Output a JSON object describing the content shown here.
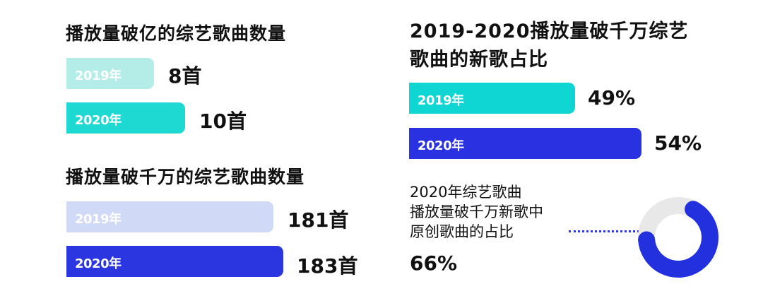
{
  "chart_data": [
    {
      "type": "bar",
      "title": "播放量破亿的综艺歌曲数量",
      "categories": [
        "2019年",
        "2020年"
      ],
      "values": [
        8,
        10
      ],
      "value_labels": [
        "8首",
        "10首"
      ],
      "colors": [
        "#b4ece8",
        "#1ed8d2"
      ]
    },
    {
      "type": "bar",
      "title": "播放量破千万的综艺歌曲数量",
      "categories": [
        "2019年",
        "2020年"
      ],
      "values": [
        181,
        183
      ],
      "value_labels": [
        "181首",
        "183首"
      ],
      "colors": [
        "#d0d9f6",
        "#2b35e0"
      ]
    },
    {
      "type": "bar",
      "title_lines": [
        "2019-2020播放量破千万综艺",
        "歌曲的新歌占比"
      ],
      "categories": [
        "2019年",
        "2020年"
      ],
      "values": [
        49,
        54
      ],
      "value_labels": [
        "49%",
        "54%"
      ],
      "colors": [
        "#0fd6d2",
        "#2a31e0"
      ]
    },
    {
      "type": "pie",
      "variant": "donut",
      "label_lines": [
        "2020年综艺歌曲",
        "播放量破千万新歌中",
        "原创歌曲的占比"
      ],
      "value": 66,
      "value_label": "66%",
      "colors": [
        "#2230dd",
        "#e8e8e8"
      ]
    }
  ]
}
